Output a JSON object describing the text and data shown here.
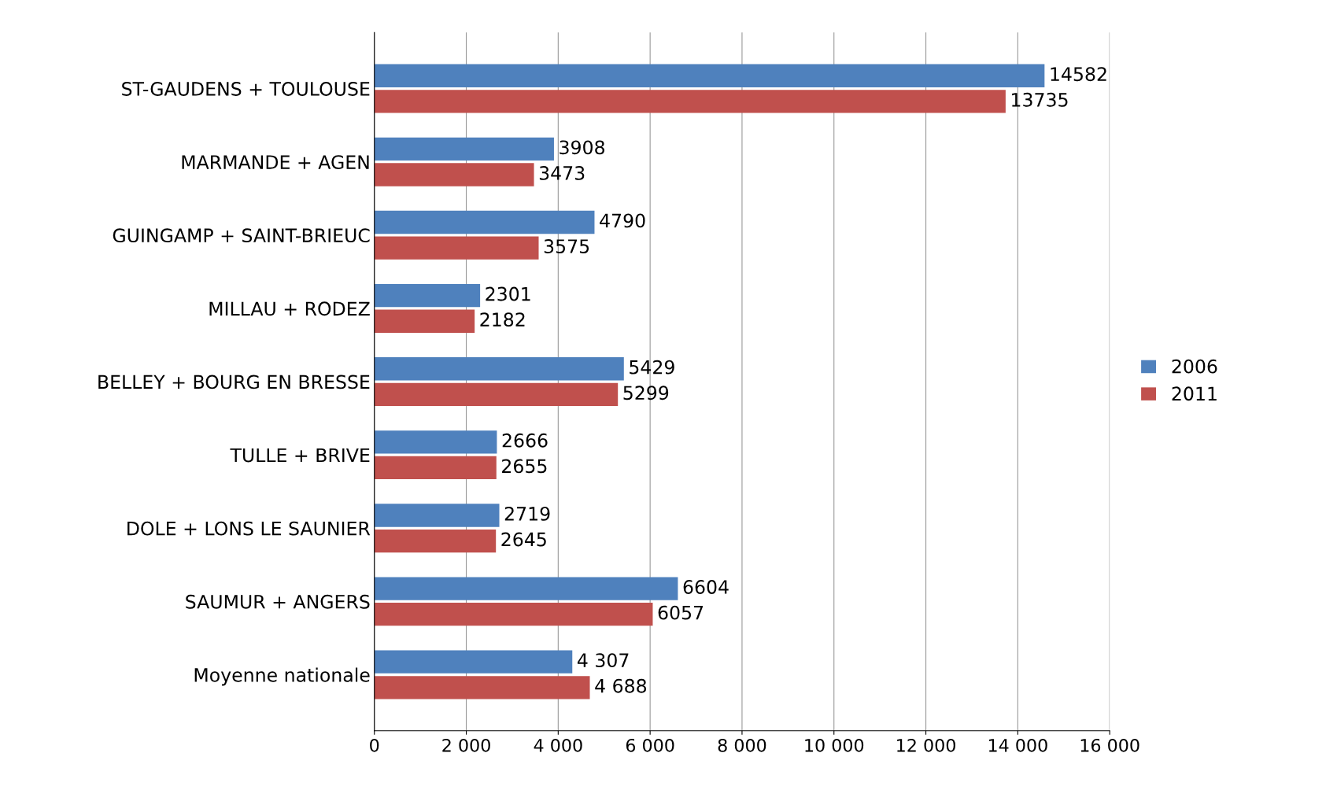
{
  "chart_data": {
    "type": "bar",
    "orientation": "horizontal",
    "categories": [
      "ST-GAUDENS + TOULOUSE",
      "MARMANDE + AGEN",
      "GUINGAMP + SAINT-BRIEUC",
      "MILLAU + RODEZ",
      "BELLEY + BOURG EN BRESSE",
      "TULLE + BRIVE",
      "DOLE + LONS LE SAUNIER",
      "SAUMUR + ANGERS",
      "Moyenne nationale"
    ],
    "series": [
      {
        "name": "2006",
        "color": "#4f81bd",
        "values": [
          14582,
          3908,
          4790,
          2301,
          5429,
          2666,
          2719,
          6604,
          4307
        ],
        "value_labels": [
          "14582",
          "3908",
          "4790",
          "2301",
          "5429",
          "2666",
          "2719",
          "6604",
          "4 307"
        ]
      },
      {
        "name": "2011",
        "color": "#c0504d",
        "values": [
          13735,
          3473,
          3575,
          2182,
          5299,
          2655,
          2645,
          6057,
          4688
        ],
        "value_labels": [
          "13735",
          "3473",
          "3575",
          "2182",
          "5299",
          "2655",
          "2645",
          "6057",
          "4 688"
        ]
      }
    ],
    "xlim": [
      0,
      16000
    ],
    "xticks": [
      0,
      {
        "value": 2000,
        "label": "2 000"
      },
      {
        "value": 4000,
        "label": "4 000"
      },
      {
        "value": 6000,
        "label": "6 000"
      },
      {
        "value": 8000,
        "label": "8 000"
      },
      {
        "value": 10000,
        "label": "10 000"
      },
      {
        "value": 12000,
        "label": "12 000"
      },
      {
        "value": 14000,
        "label": "14 000"
      },
      {
        "value": 16000,
        "label": "16 000"
      }
    ],
    "grid": "x",
    "legend": "right"
  }
}
